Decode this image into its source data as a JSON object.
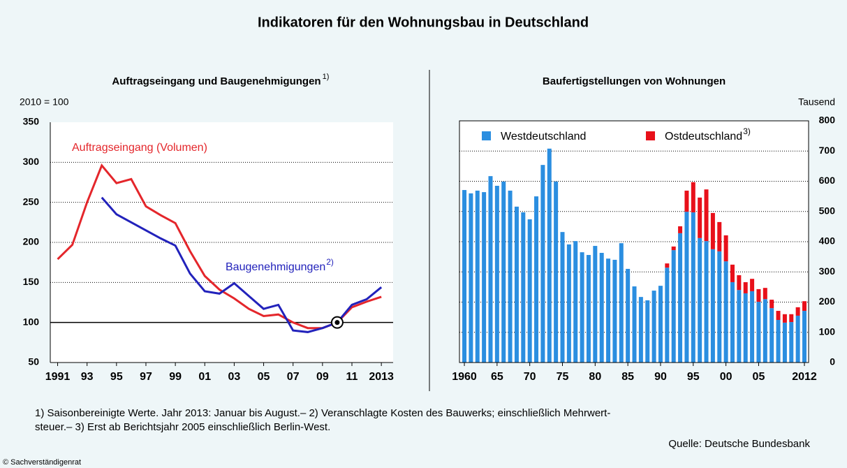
{
  "title": "Indikatoren für den Wohnungsbau in Deutschland",
  "chart_data": [
    {
      "type": "line",
      "title": "Auftragseingang und Baugenehmigungen",
      "title_note": "1)",
      "y_label": "2010 = 100",
      "x": [
        1991,
        1992,
        1993,
        1994,
        1995,
        1996,
        1997,
        1998,
        1999,
        2000,
        2001,
        2002,
        2003,
        2004,
        2005,
        2006,
        2007,
        2008,
        2009,
        2010,
        2011,
        2012,
        2013
      ],
      "series": [
        {
          "name": "Auftragseingang (Volumen)",
          "color": "#e4262b",
          "values": [
            179,
            197,
            250,
            296,
            274,
            279,
            245,
            234,
            224,
            189,
            158,
            141,
            130,
            117,
            108,
            110,
            100,
            93,
            93,
            100,
            119,
            126,
            132
          ]
        },
        {
          "name": "Baugenehmigungen",
          "note": "2)",
          "color": "#2222bb",
          "values": [
            null,
            null,
            null,
            256,
            235,
            225,
            215,
            205,
            196,
            161,
            139,
            136,
            149,
            133,
            117,
            122,
            90,
            88,
            93,
            100,
            122,
            129,
            144
          ]
        }
      ],
      "index_base": {
        "x": 2010,
        "y": 100
      },
      "xlim": [
        1990.5,
        2013.8
      ],
      "xticks": [
        1991,
        {
          "value": 1993,
          "label": "93"
        },
        {
          "value": 1995,
          "label": "95"
        },
        {
          "value": 1997,
          "label": "97"
        },
        {
          "value": 1999,
          "label": "99"
        },
        {
          "value": 2001,
          "label": "01"
        },
        {
          "value": 2003,
          "label": "03"
        },
        {
          "value": 2005,
          "label": "05"
        },
        {
          "value": 2007,
          "label": "07"
        },
        {
          "value": 2009,
          "label": "09"
        },
        {
          "value": 2011,
          "label": "11"
        },
        2013
      ],
      "ylim": [
        50,
        350
      ],
      "yticks": [
        50,
        100,
        150,
        200,
        250,
        300,
        350
      ],
      "grid": true
    },
    {
      "type": "stacked_bar",
      "title": "Baufertigstellungen von Wohnungen",
      "y_label": "Tausend",
      "x": [
        1960,
        1961,
        1962,
        1963,
        1964,
        1965,
        1966,
        1967,
        1968,
        1969,
        1970,
        1971,
        1972,
        1973,
        1974,
        1975,
        1976,
        1977,
        1978,
        1979,
        1980,
        1981,
        1982,
        1983,
        1984,
        1985,
        1986,
        1987,
        1988,
        1989,
        1990,
        1991,
        1992,
        1993,
        1994,
        1995,
        1996,
        1997,
        1998,
        1999,
        2000,
        2001,
        2002,
        2003,
        2004,
        2005,
        2006,
        2007,
        2008,
        2009,
        2010,
        2011,
        2012
      ],
      "series": [
        {
          "name": "Westdeutschland",
          "color": "#2b8ee0",
          "values": [
            571,
            560,
            569,
            564,
            617,
            585,
            599,
            569,
            516,
            497,
            474,
            550,
            654,
            708,
            599,
            432,
            391,
            402,
            365,
            356,
            386,
            363,
            344,
            340,
            395,
            310,
            252,
            217,
            206,
            238,
            254,
            314,
            372,
            428,
            499,
            497,
            412,
            402,
            375,
            368,
            335,
            266,
            240,
            229,
            236,
            201,
            210,
            180,
            141,
            132,
            134,
            155,
            171
          ]
        },
        {
          "name": "Ostdeutschland",
          "note": "3)",
          "color": "#e8101a",
          "values": [
            null,
            null,
            null,
            null,
            null,
            null,
            null,
            null,
            null,
            null,
            null,
            null,
            null,
            null,
            null,
            null,
            null,
            null,
            null,
            null,
            null,
            null,
            null,
            null,
            null,
            null,
            null,
            null,
            null,
            null,
            null,
            14,
            12,
            23,
            70,
            100,
            134,
            171,
            120,
            97,
            86,
            58,
            49,
            37,
            41,
            42,
            37,
            28,
            30,
            28,
            26,
            28,
            32
          ]
        }
      ],
      "xlim": [
        1959.25,
        2012.64
      ],
      "xticks": [
        1960,
        {
          "value": 1965,
          "label": "65"
        },
        {
          "value": 1970,
          "label": "70"
        },
        {
          "value": 1975,
          "label": "75"
        },
        {
          "value": 1980,
          "label": "80"
        },
        {
          "value": 1985,
          "label": "85"
        },
        {
          "value": 1990,
          "label": "90"
        },
        {
          "value": 1995,
          "label": "95"
        },
        {
          "value": 2000,
          "label": "00"
        },
        {
          "value": 2005,
          "label": "05"
        },
        2012
      ],
      "ylim": [
        0,
        800
      ],
      "yticks": [
        0,
        100,
        200,
        300,
        400,
        500,
        600,
        700,
        800
      ],
      "grid": true
    }
  ],
  "footnotes": [
    "1) Saisonbereinigte Werte. Jahr 2013: Januar bis August.– 2) Veranschlagte Kosten des Bauwerks; einschließlich Mehrwert-",
    "steuer.– 3) Erst ab Berichtsjahr 2005 einschließlich Berlin-West."
  ],
  "source": "Quelle: Deutsche Bundesbank",
  "copyright": "© Sachverständigenrat"
}
